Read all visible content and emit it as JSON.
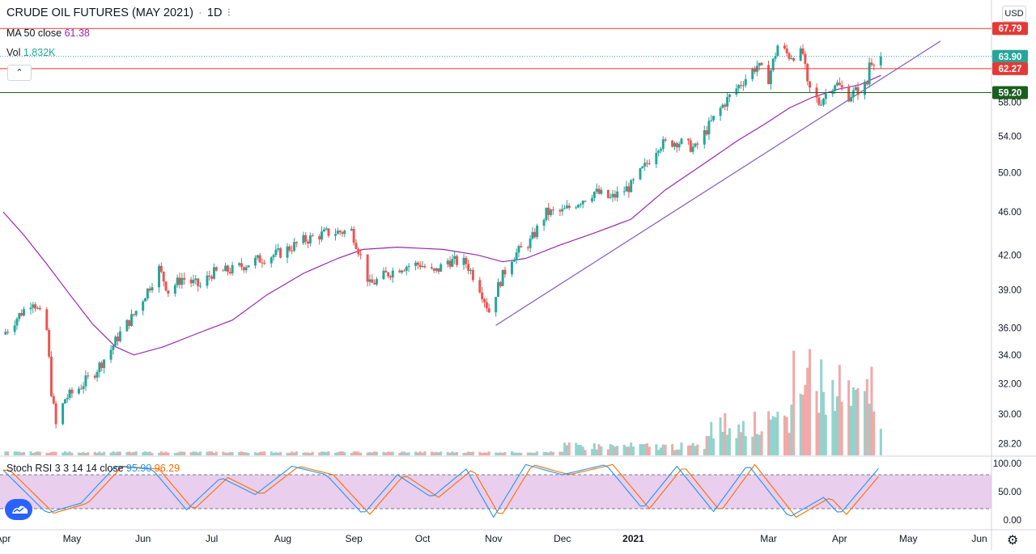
{
  "header": {
    "symbol": "CRUDE OIL FUTURES (MAY 2021)",
    "sep": "·",
    "interval": "1D",
    "dots": "⁝",
    "ma_label": "MA 50 close",
    "ma_value": "61.38",
    "vol_label": "Vol",
    "vol_value": "1.832K",
    "stoch_label": "Stoch RSI 3 3 14 14 close",
    "stoch_k": "95.90",
    "stoch_d": "96.29",
    "currency": "USD",
    "collapse_glyph": "⌃"
  },
  "colors": {
    "up": "#26a69a",
    "down": "#ef5350",
    "ma": "#9c27b0",
    "trendline": "#7e57c2",
    "resistance": "#e53935",
    "support": "#1b5e20",
    "stoch_k": "#2196f3",
    "stoch_d": "#ff6d00",
    "rsi_band": "#e1bee7",
    "ma_text": "#9c27b0",
    "vol_text": "#26a69a"
  },
  "icons": {
    "logo": "tradingview-logo-icon",
    "settings": "gear-icon"
  },
  "chart_data": {
    "type": "candlestick",
    "title": "CRUDE OIL FUTURES (MAY 2021)",
    "interval": "1D",
    "y_scale": "log",
    "ylim": [
      27.5,
      72
    ],
    "price_ticks": [
      28.2,
      30.0,
      32.0,
      34.0,
      36.0,
      39.0,
      42.0,
      46.0,
      50.0,
      54.0,
      58.0
    ],
    "x_tick_labels": [
      "Apr",
      "May",
      "Jun",
      "Jul",
      "Aug",
      "Sep",
      "Oct",
      "Nov",
      "Dec",
      "2021",
      "Mar",
      "Apr",
      "May",
      "Jun"
    ],
    "x_tick_dates": [
      "2020-04-01",
      "2020-05-01",
      "2020-06-01",
      "2020-07-01",
      "2020-08-01",
      "2020-09-01",
      "2020-10-01",
      "2020-11-01",
      "2020-12-01",
      "2021-01-01",
      "2021-03-01",
      "2021-04-01",
      "2021-05-01",
      "2021-06-01"
    ],
    "price_close_series": [
      [
        "2020-04-01",
        35.5
      ],
      [
        "2020-04-08",
        37.0
      ],
      [
        "2020-04-14",
        38.2
      ],
      [
        "2020-04-20",
        35.8
      ],
      [
        "2020-04-22",
        31.5
      ],
      [
        "2020-04-24",
        29.3
      ],
      [
        "2020-04-28",
        31.0
      ],
      [
        "2020-05-04",
        31.7
      ],
      [
        "2020-05-11",
        32.8
      ],
      [
        "2020-05-18",
        34.4
      ],
      [
        "2020-05-22",
        35.6
      ],
      [
        "2020-05-28",
        37.0
      ],
      [
        "2020-06-03",
        39.0
      ],
      [
        "2020-06-08",
        40.8
      ],
      [
        "2020-06-12",
        38.9
      ],
      [
        "2020-06-18",
        40.0
      ],
      [
        "2020-06-26",
        39.3
      ],
      [
        "2020-07-01",
        40.4
      ],
      [
        "2020-07-10",
        40.7
      ],
      [
        "2020-07-20",
        41.5
      ],
      [
        "2020-07-31",
        42.2
      ],
      [
        "2020-08-10",
        43.3
      ],
      [
        "2020-08-20",
        44.0
      ],
      [
        "2020-08-31",
        44.2
      ],
      [
        "2020-09-03",
        42.5
      ],
      [
        "2020-09-08",
        39.4
      ],
      [
        "2020-09-15",
        40.3
      ],
      [
        "2020-09-22",
        41.0
      ],
      [
        "2020-09-30",
        41.2
      ],
      [
        "2020-10-06",
        40.4
      ],
      [
        "2020-10-12",
        41.5
      ],
      [
        "2020-10-20",
        41.3
      ],
      [
        "2020-10-26",
        39.2
      ],
      [
        "2020-10-30",
        37.3
      ],
      [
        "2020-11-04",
        39.8
      ],
      [
        "2020-11-09",
        41.8
      ],
      [
        "2020-11-17",
        43.2
      ],
      [
        "2020-11-24",
        45.9
      ],
      [
        "2020-12-01",
        46.0
      ],
      [
        "2020-12-08",
        47.0
      ],
      [
        "2020-12-15",
        48.0
      ],
      [
        "2020-12-22",
        47.3
      ],
      [
        "2020-12-31",
        48.6
      ],
      [
        "2021-01-06",
        50.6
      ],
      [
        "2021-01-12",
        53.0
      ],
      [
        "2021-01-20",
        53.4
      ],
      [
        "2021-01-28",
        52.6
      ],
      [
        "2021-02-04",
        55.6
      ],
      [
        "2021-02-10",
        58.0
      ],
      [
        "2021-02-17",
        60.4
      ],
      [
        "2021-02-24",
        62.7
      ],
      [
        "2021-03-01",
        61.0
      ],
      [
        "2021-03-05",
        65.4
      ],
      [
        "2021-03-10",
        64.0
      ],
      [
        "2021-03-16",
        64.3
      ],
      [
        "2021-03-18",
        60.0
      ],
      [
        "2021-03-23",
        57.9
      ],
      [
        "2021-03-30",
        60.5
      ],
      [
        "2021-04-05",
        58.8
      ],
      [
        "2021-04-09",
        59.5
      ],
      [
        "2021-04-13",
        60.3
      ],
      [
        "2021-04-14",
        63.2
      ],
      [
        "2021-04-19",
        63.9
      ]
    ],
    "ma50_series": [
      [
        "2020-04-01",
        46.0
      ],
      [
        "2020-04-10",
        43.8
      ],
      [
        "2020-04-20",
        41.2
      ],
      [
        "2020-05-01",
        38.4
      ],
      [
        "2020-05-10",
        36.3
      ],
      [
        "2020-05-20",
        34.6
      ],
      [
        "2020-05-28",
        34.0
      ],
      [
        "2020-06-10",
        34.6
      ],
      [
        "2020-06-25",
        35.6
      ],
      [
        "2020-07-10",
        36.6
      ],
      [
        "2020-07-25",
        38.6
      ],
      [
        "2020-08-10",
        40.4
      ],
      [
        "2020-08-25",
        41.7
      ],
      [
        "2020-09-05",
        42.5
      ],
      [
        "2020-09-20",
        42.7
      ],
      [
        "2020-10-10",
        42.5
      ],
      [
        "2020-10-25",
        42.0
      ],
      [
        "2020-11-05",
        41.4
      ],
      [
        "2020-11-15",
        41.7
      ],
      [
        "2020-11-30",
        42.9
      ],
      [
        "2020-12-15",
        44.0
      ],
      [
        "2020-12-31",
        45.3
      ],
      [
        "2021-01-15",
        48.2
      ],
      [
        "2021-01-31",
        50.8
      ],
      [
        "2021-02-15",
        53.4
      ],
      [
        "2021-02-28",
        55.5
      ],
      [
        "2021-03-10",
        57.3
      ],
      [
        "2021-03-20",
        58.6
      ],
      [
        "2021-03-31",
        59.6
      ],
      [
        "2021-04-10",
        60.2
      ],
      [
        "2021-04-19",
        61.4
      ]
    ],
    "trendline": [
      [
        "2020-11-02",
        36.2
      ],
      [
        "2021-05-15",
        66.0
      ]
    ],
    "levels": [
      {
        "value": 67.79,
        "label": "67.79",
        "kind": "resistance"
      },
      {
        "value": 63.9,
        "label": "63.90",
        "kind": "last"
      },
      {
        "value": 62.27,
        "label": "62.27",
        "kind": "resistance"
      },
      {
        "value": 59.2,
        "label": "59.20",
        "kind": "support"
      }
    ],
    "volume_note": "volume bars visible mainly from Feb 2021 onward, peak about mid-March 2021",
    "stoch_rsi": {
      "k_label": "95.90",
      "d_label": "96.29",
      "band": [
        20,
        80
      ],
      "ticks": [
        100.0,
        50.0,
        0.0
      ],
      "tick_labels": [
        "100.00",
        "50.00",
        "0.00"
      ],
      "k_series": [
        [
          "2020-04-01",
          88
        ],
        [
          "2020-04-20",
          12
        ],
        [
          "2020-05-05",
          30
        ],
        [
          "2020-05-20",
          95
        ],
        [
          "2020-06-05",
          90
        ],
        [
          "2020-06-20",
          18
        ],
        [
          "2020-07-05",
          75
        ],
        [
          "2020-07-20",
          45
        ],
        [
          "2020-08-05",
          95
        ],
        [
          "2020-08-20",
          80
        ],
        [
          "2020-09-05",
          10
        ],
        [
          "2020-09-20",
          80
        ],
        [
          "2020-10-05",
          40
        ],
        [
          "2020-10-20",
          90
        ],
        [
          "2020-11-01",
          5
        ],
        [
          "2020-11-15",
          98
        ],
        [
          "2020-12-01",
          80
        ],
        [
          "2020-12-20",
          98
        ],
        [
          "2021-01-05",
          20
        ],
        [
          "2021-01-20",
          95
        ],
        [
          "2021-02-05",
          15
        ],
        [
          "2021-02-20",
          98
        ],
        [
          "2021-03-10",
          5
        ],
        [
          "2021-03-25",
          40
        ],
        [
          "2021-04-01",
          10
        ],
        [
          "2021-04-19",
          95.9
        ]
      ]
    }
  }
}
